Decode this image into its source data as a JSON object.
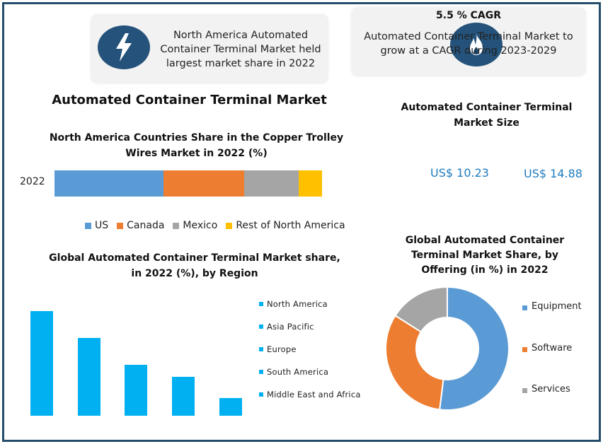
{
  "infobox_left": {
    "icon": "lightning-bolt-icon",
    "text": "North America Automated Container Terminal Market held largest market share in 2022"
  },
  "infobox_right": {
    "icon": "flame-icon",
    "title": "5.5 % CAGR",
    "text": "Automated Container Terminal Market to grow at a CAGR during 2023-2029"
  },
  "main_title": "Automated Container Terminal Market",
  "market_size": {
    "title": "Automated Container Terminal Market Size",
    "value_start": "US$ 10.23",
    "value_end": "US$ 14.88"
  },
  "colors": {
    "frame": "#254d6b",
    "badge": "#24527a",
    "value_text": "#1e7bbf",
    "us": "#5b9bd5",
    "canada": "#ed7d31",
    "mexico": "#a5a5a5",
    "rest": "#ffc000",
    "region_bar": "#00b0f0"
  },
  "chart_data": [
    {
      "type": "bar",
      "orientation": "horizontal-stacked",
      "title": "North America Countries Share in the Copper Trolley Wires Market in 2022 (%)",
      "categories": [
        "2022"
      ],
      "series": [
        {
          "name": "US",
          "values": [
            40.7
          ],
          "color": "#5b9bd5"
        },
        {
          "name": "Canada",
          "values": [
            30.2
          ],
          "color": "#ed7d31"
        },
        {
          "name": "Mexico",
          "values": [
            20.4
          ],
          "color": "#a5a5a5"
        },
        {
          "name": "Rest of North America",
          "values": [
            8.7
          ],
          "color": "#ffc000"
        }
      ],
      "xlabel": "",
      "ylabel": "",
      "legend_position": "bottom",
      "grid": false
    },
    {
      "type": "bar",
      "title": "Global Automated Container Terminal Market share, in 2022 (%), by Region",
      "categories": [
        "North America",
        "Asia Pacific",
        "Europe",
        "South America",
        "Middle East and Africa"
      ],
      "values": [
        35,
        26,
        17,
        13,
        6
      ],
      "color": "#00b0f0",
      "xlabel": "",
      "ylabel": "",
      "legend_position": "right",
      "grid": false
    },
    {
      "type": "pie",
      "style": "donut",
      "title": "Global Automated Container Terminal Market Share, by Offering (in %) in 2022",
      "categories": [
        "Equipment",
        "Software",
        "Services"
      ],
      "values": [
        52,
        32,
        16
      ],
      "colors": [
        "#5b9bd5",
        "#ed7d31",
        "#a5a5a5"
      ],
      "legend_position": "right"
    }
  ]
}
